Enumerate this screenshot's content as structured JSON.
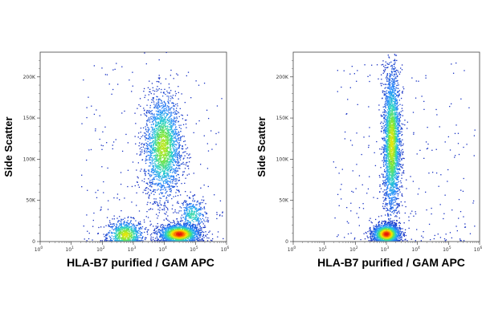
{
  "chart_data": [
    {
      "type": "scatter",
      "subtype": "flow-cytometry-density-dot-plot",
      "xlabel": "HLA-B7 purified / GAM APC",
      "ylabel": "Side Scatter",
      "xscale": "log",
      "xlim": [
        1,
        1000000
      ],
      "ylim": [
        0,
        230000
      ],
      "x_ticks": [
        {
          "value": 1,
          "base": "10",
          "exp": "0"
        },
        {
          "value": 10,
          "base": "10",
          "exp": "1"
        },
        {
          "value": 100,
          "base": "10",
          "exp": "2"
        },
        {
          "value": 1000,
          "base": "10",
          "exp": "3"
        },
        {
          "value": 10000,
          "base": "10",
          "exp": "4"
        },
        {
          "value": 100000,
          "base": "10",
          "exp": "5"
        },
        {
          "value": 1000000,
          "base": "10",
          "exp": "6"
        }
      ],
      "y_ticks": [
        {
          "value": 0,
          "label": "0"
        },
        {
          "value": 50000,
          "label": "50K"
        },
        {
          "value": 100000,
          "label": "100K"
        },
        {
          "value": 150000,
          "label": "150K"
        },
        {
          "value": 200000,
          "label": "200K"
        }
      ],
      "clusters": [
        {
          "x": 550,
          "y": 8000,
          "sx": 0.3,
          "sy": 9000,
          "n": 800,
          "peak": 0.75
        },
        {
          "x": 9000,
          "y": 115000,
          "sx": 0.3,
          "sy": 32000,
          "n": 2200,
          "peak": 0.7
        },
        {
          "x": 30000,
          "y": 9000,
          "sx": 0.33,
          "sy": 6000,
          "n": 1700,
          "peak": 1.0
        },
        {
          "x": 80000,
          "y": 32000,
          "sx": 0.22,
          "sy": 10000,
          "n": 350,
          "peak": 0.5
        }
      ]
    },
    {
      "type": "scatter",
      "subtype": "flow-cytometry-density-dot-plot",
      "xlabel": "HLA-B7 purified / GAM APC",
      "ylabel": "Side Scatter",
      "xscale": "log",
      "xlim": [
        1,
        1000000
      ],
      "ylim": [
        0,
        230000
      ],
      "x_ticks": [
        {
          "value": 1,
          "base": "10",
          "exp": "0"
        },
        {
          "value": 10,
          "base": "10",
          "exp": "1"
        },
        {
          "value": 100,
          "base": "10",
          "exp": "2"
        },
        {
          "value": 1000,
          "base": "10",
          "exp": "3"
        },
        {
          "value": 10000,
          "base": "10",
          "exp": "4"
        },
        {
          "value": 100000,
          "base": "10",
          "exp": "5"
        },
        {
          "value": 1000000,
          "base": "10",
          "exp": "6"
        }
      ],
      "y_ticks": [
        {
          "value": 0,
          "label": "0"
        },
        {
          "value": 50000,
          "label": "50K"
        },
        {
          "value": 100000,
          "label": "100K"
        },
        {
          "value": 150000,
          "label": "150K"
        },
        {
          "value": 200000,
          "label": "200K"
        }
      ],
      "clusters": [
        {
          "x": 1000,
          "y": 9000,
          "sx": 0.22,
          "sy": 6000,
          "n": 1600,
          "peak": 1.0
        },
        {
          "x": 1500,
          "y": 120000,
          "sx": 0.14,
          "sy": 45000,
          "n": 2600,
          "peak": 0.75
        }
      ]
    }
  ]
}
